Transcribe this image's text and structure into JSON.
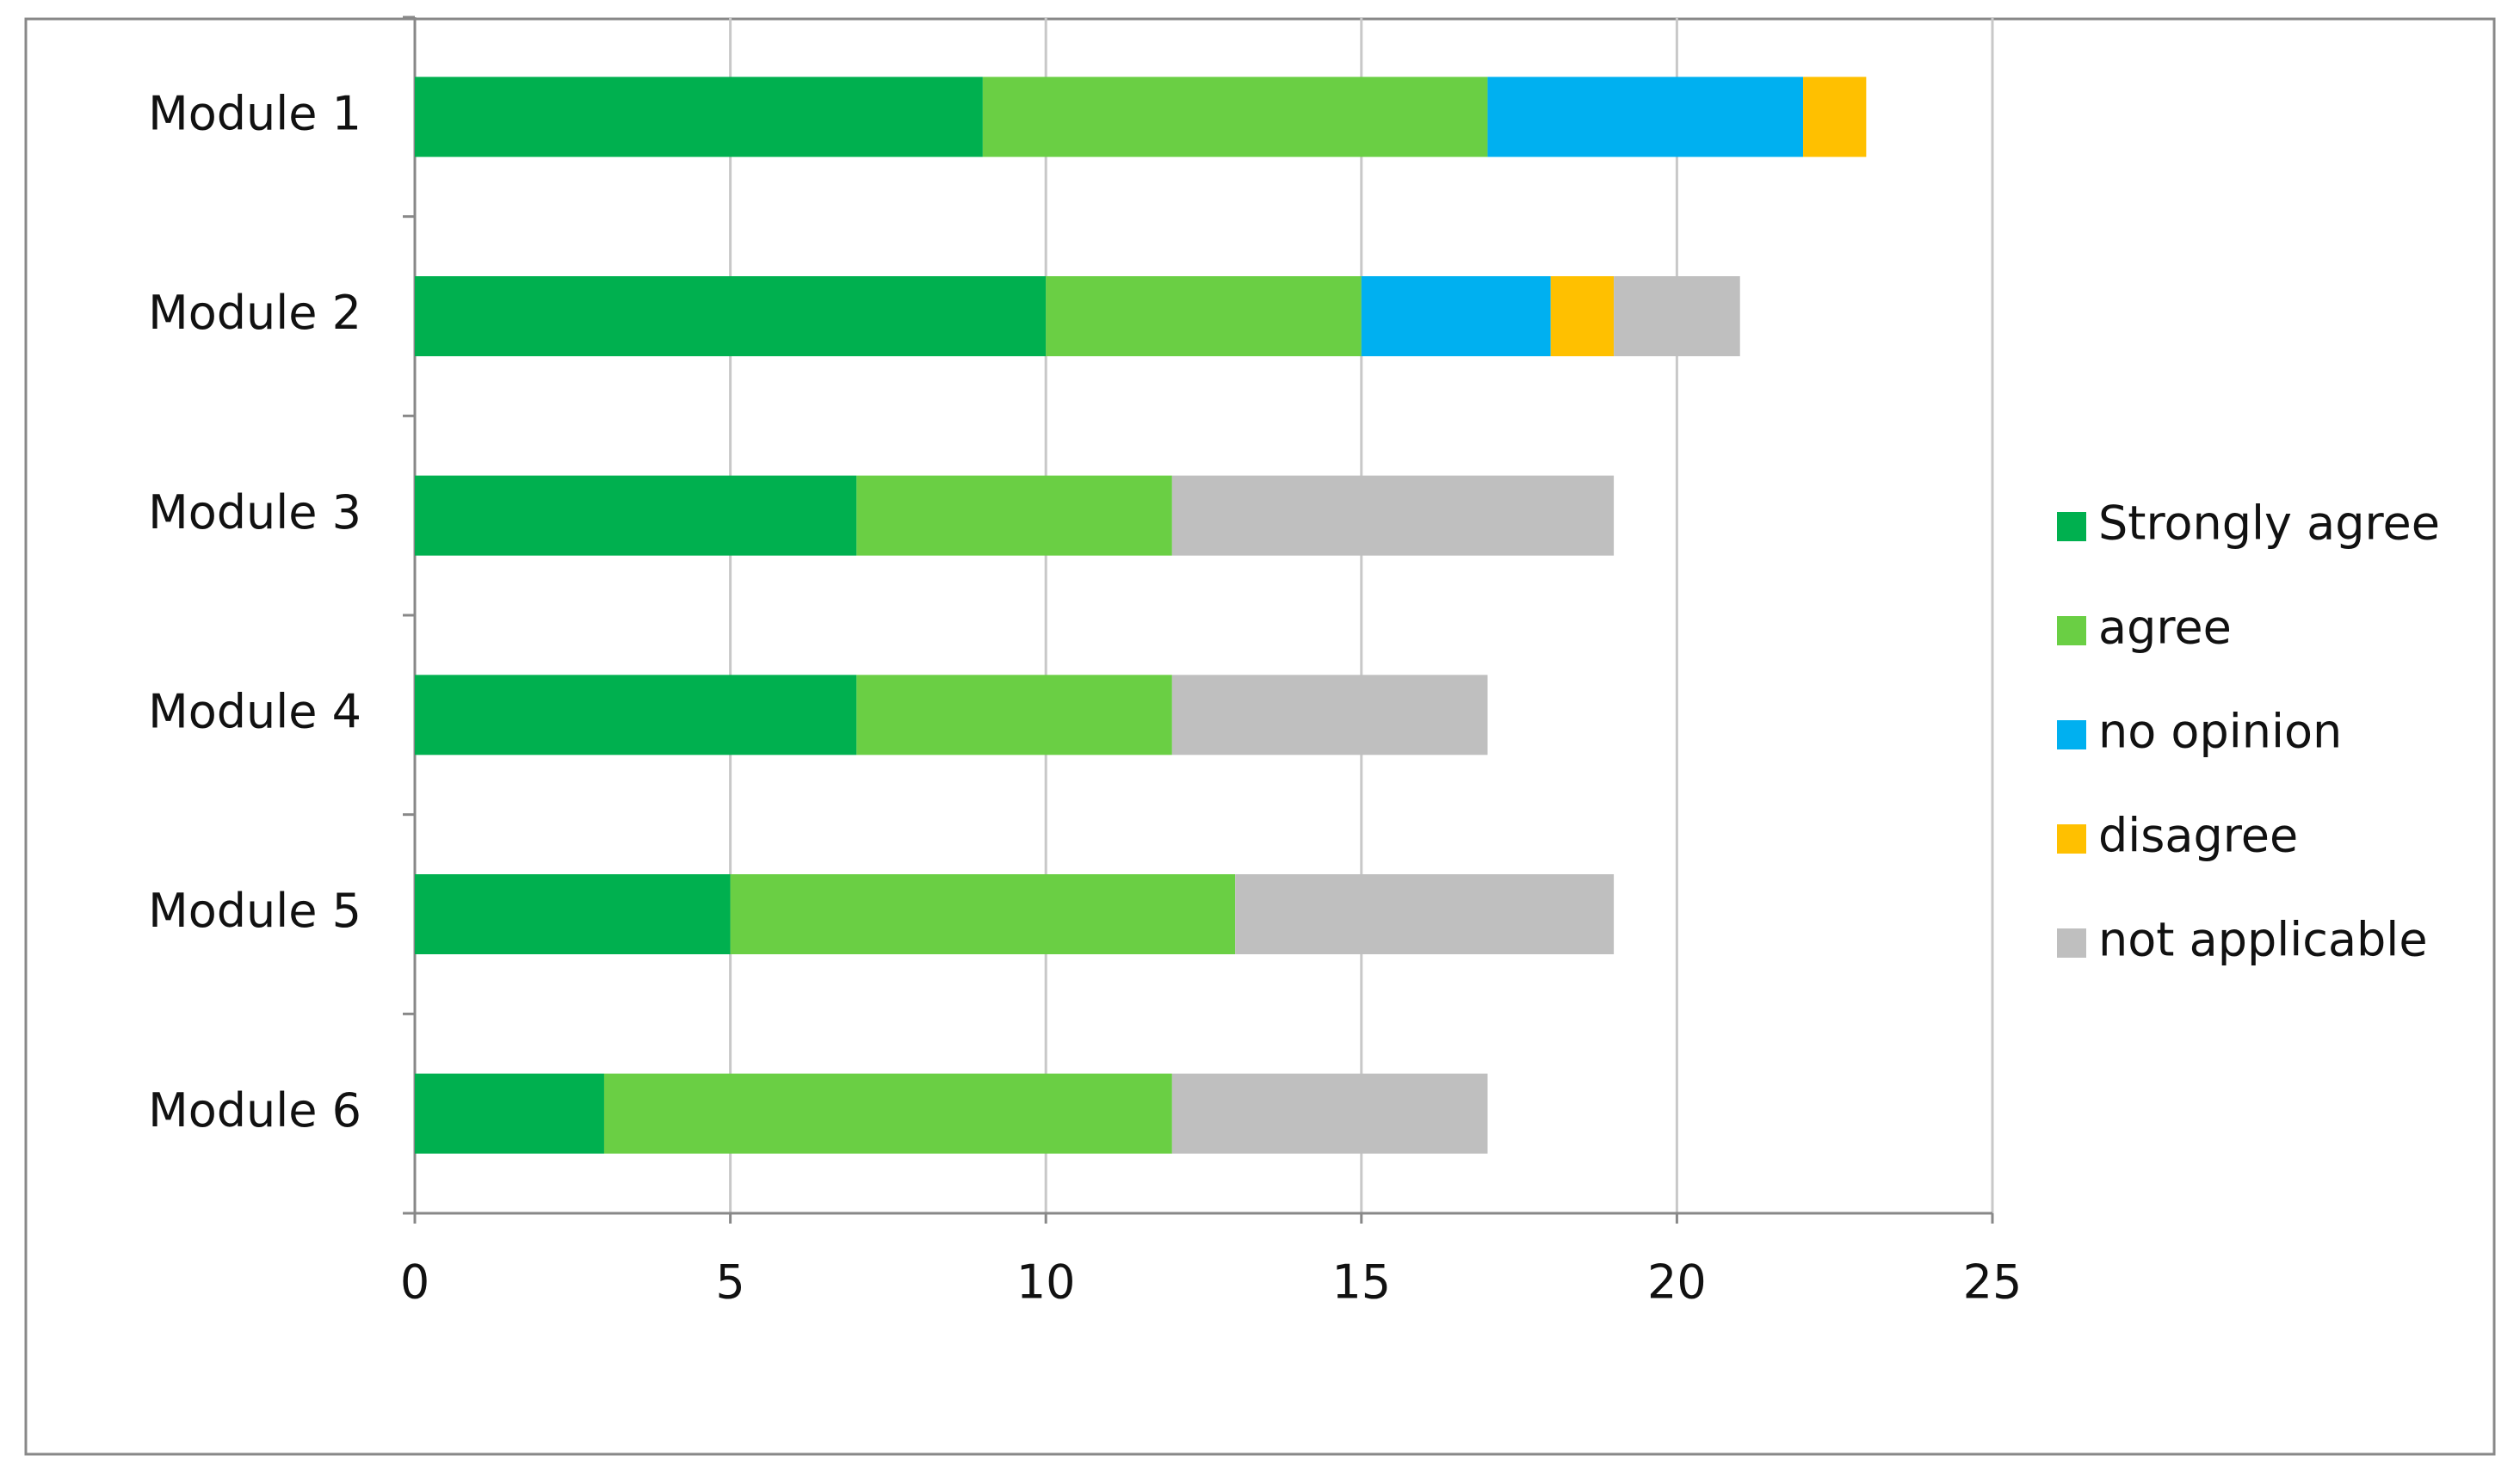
{
  "chart_data": {
    "type": "stacked-hbar",
    "categories": [
      "Module 1",
      "Module 2",
      "Module 3",
      "Module 4",
      "Module 5",
      "Module 6"
    ],
    "series": [
      {
        "name": "Strongly agree",
        "color": "#00b04f",
        "values": [
          9,
          10,
          7,
          7,
          5,
          3
        ]
      },
      {
        "name": "agree",
        "color": "#6acf44",
        "values": [
          8,
          5,
          5,
          5,
          8,
          9
        ]
      },
      {
        "name": "no opinion",
        "color": "#00b0f0",
        "values": [
          5,
          3,
          0,
          0,
          0,
          0
        ]
      },
      {
        "name": "disagree",
        "color": "#ffc000",
        "values": [
          1,
          1,
          0,
          0,
          0,
          0
        ]
      },
      {
        "name": "not applicable",
        "color": "#bfbfbf",
        "values": [
          0,
          2,
          7,
          5,
          6,
          5
        ]
      }
    ],
    "xlim": [
      0,
      25
    ],
    "xticks": [
      0,
      5,
      10,
      15,
      20,
      25
    ],
    "grid": true,
    "legend": "right"
  }
}
